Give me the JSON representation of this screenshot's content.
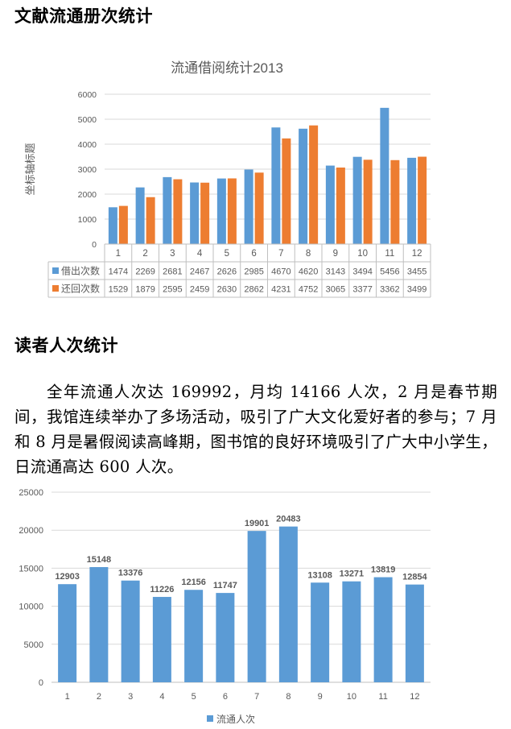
{
  "sections": {
    "circulation_title": "文献流通册次统计",
    "readers_title": "读者人次统计",
    "readers_paragraph": "全年流通人次达 169992，月均 14166 人次，2 月是春节期间，我馆连续举办了多场活动，吸引了广大文化爱好者的参与；7 月和 8 月是暑假阅读高峰期，图书馆的良好环境吸引了广大中小学生，日流通高达 600 人次。"
  },
  "chart_data": [
    {
      "type": "bar",
      "title": "流通借阅统计2013",
      "ylabel": "坐标轴标题",
      "xlabel": "",
      "ylim": [
        0,
        6000
      ],
      "yticks": [
        0,
        1000,
        2000,
        3000,
        4000,
        5000,
        6000
      ],
      "categories": [
        "1",
        "2",
        "3",
        "4",
        "5",
        "6",
        "7",
        "8",
        "9",
        "10",
        "11",
        "12"
      ],
      "series": [
        {
          "name": "借出次数",
          "color": "#5b9bd5",
          "values": [
            1474,
            2269,
            2681,
            2467,
            2626,
            2985,
            4670,
            4620,
            3143,
            3494,
            5456,
            3455
          ]
        },
        {
          "name": "还回次数",
          "color": "#ed7d31",
          "values": [
            1529,
            1879,
            2595,
            2459,
            2630,
            2862,
            4231,
            4752,
            3065,
            3377,
            3362,
            3499
          ]
        }
      ],
      "grid": true,
      "legend": "data-table",
      "data_table": true
    },
    {
      "type": "bar",
      "title": "",
      "xlabel": "",
      "ylabel": "",
      "ylim": [
        0,
        25000
      ],
      "yticks": [
        0,
        5000,
        10000,
        15000,
        20000,
        25000
      ],
      "categories": [
        "1",
        "2",
        "3",
        "4",
        "5",
        "6",
        "7",
        "8",
        "9",
        "10",
        "11",
        "12"
      ],
      "series": [
        {
          "name": "流通人次",
          "color": "#5b9bd5",
          "values": [
            12903,
            15148,
            13376,
            11226,
            12156,
            11747,
            19901,
            20483,
            13108,
            13271,
            13819,
            12854
          ]
        }
      ],
      "grid": true,
      "legend": "bottom-center",
      "data_labels": true
    }
  ]
}
